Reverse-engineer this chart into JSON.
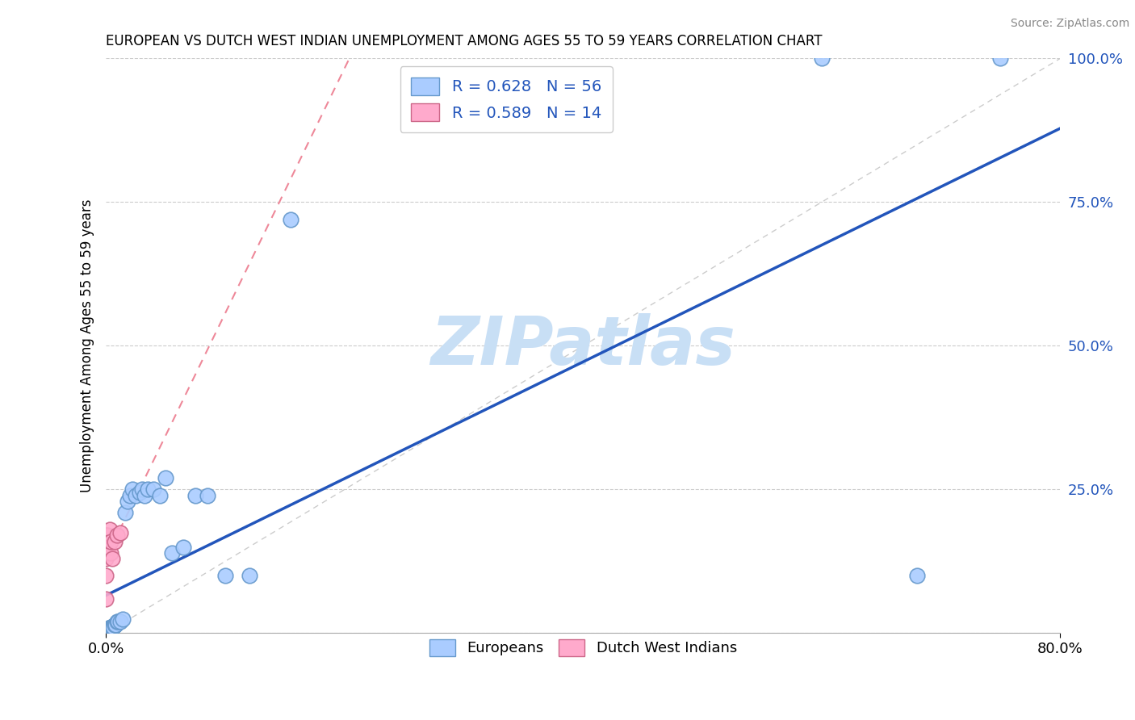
{
  "title": "EUROPEAN VS DUTCH WEST INDIAN UNEMPLOYMENT AMONG AGES 55 TO 59 YEARS CORRELATION CHART",
  "source": "Source: ZipAtlas.com",
  "ylabel": "Unemployment Among Ages 55 to 59 years",
  "european_color": "#aaccff",
  "european_edge": "#6699cc",
  "dutch_color": "#ffaacc",
  "dutch_edge": "#cc6688",
  "trend_european_color": "#2255bb",
  "trend_dutch_color": "#ee8899",
  "ref_line_color": "#cccccc",
  "background_color": "#ffffff",
  "watermark_color": "#c8dff5",
  "xlim": [
    0.0,
    0.8
  ],
  "ylim": [
    0.0,
    1.0
  ],
  "eu_x": [
    0.0,
    0.0,
    0.0,
    0.0,
    0.0,
    0.0,
    0.0,
    0.0,
    0.0,
    0.0,
    0.001,
    0.001,
    0.001,
    0.002,
    0.002,
    0.002,
    0.002,
    0.003,
    0.003,
    0.003,
    0.004,
    0.004,
    0.005,
    0.005,
    0.005,
    0.006,
    0.006,
    0.007,
    0.008,
    0.008,
    0.009,
    0.01,
    0.012,
    0.014,
    0.016,
    0.018,
    0.02,
    0.022,
    0.025,
    0.028,
    0.03,
    0.032,
    0.035,
    0.04,
    0.045,
    0.05,
    0.055,
    0.065,
    0.075,
    0.085,
    0.1,
    0.12,
    0.155,
    0.6,
    0.68,
    0.75
  ],
  "eu_y": [
    0.0,
    0.0,
    0.0,
    0.0,
    0.0,
    0.0,
    0.0,
    0.0,
    0.0,
    0.0,
    0.0,
    0.0,
    0.0,
    0.0,
    0.0,
    0.0,
    0.0,
    0.0,
    0.0,
    0.0,
    0.01,
    0.01,
    0.01,
    0.01,
    0.01,
    0.01,
    0.01,
    0.015,
    0.015,
    0.015,
    0.02,
    0.02,
    0.02,
    0.025,
    0.21,
    0.23,
    0.24,
    0.25,
    0.24,
    0.245,
    0.25,
    0.24,
    0.25,
    0.25,
    0.24,
    0.27,
    0.14,
    0.15,
    0.24,
    0.24,
    0.1,
    0.1,
    0.72,
    1.0,
    0.1,
    1.0
  ],
  "du_x": [
    0.0,
    0.0,
    0.0,
    0.0,
    0.001,
    0.001,
    0.002,
    0.003,
    0.004,
    0.004,
    0.005,
    0.007,
    0.009,
    0.012
  ],
  "du_y": [
    0.06,
    0.1,
    0.13,
    0.17,
    0.14,
    0.17,
    0.15,
    0.18,
    0.14,
    0.16,
    0.13,
    0.16,
    0.17,
    0.175
  ],
  "eu_trend_x0": 0.0,
  "eu_trend_y0": 0.02,
  "eu_trend_x1": 0.8,
  "eu_trend_y1": 1.0,
  "du_trend_x0": 0.0,
  "du_trend_y0": 0.1,
  "du_trend_x1": 0.015,
  "du_trend_y1": 0.2
}
